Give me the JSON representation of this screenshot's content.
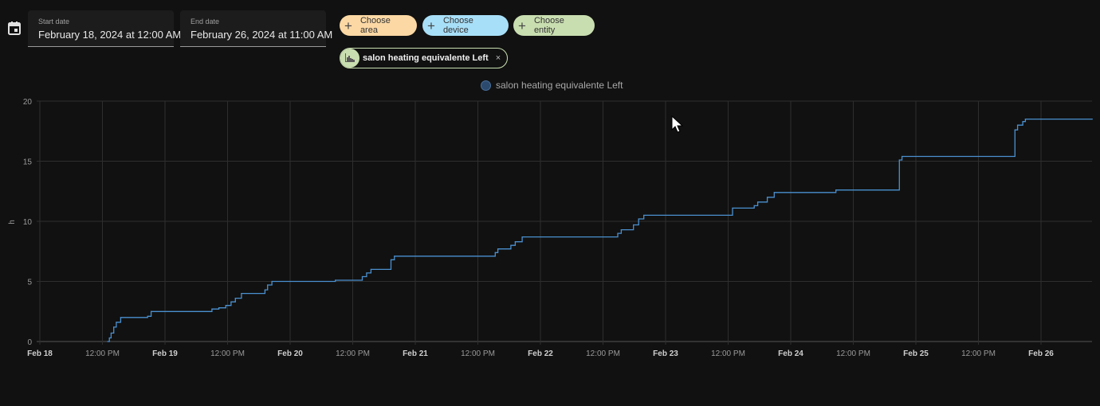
{
  "controls": {
    "calendar_icon": "calendar-icon",
    "start_date": {
      "label": "Start date",
      "value": "February 18, 2024 at 12:00 AM"
    },
    "end_date": {
      "label": "End date",
      "value": "February 26, 2024 at 11:00 AM"
    },
    "chips": [
      {
        "label": "Choose area",
        "color": "#fcd8a4"
      },
      {
        "label": "Choose device",
        "color": "#a8dff8"
      },
      {
        "label": "Choose entity",
        "color": "#c9deb0"
      }
    ],
    "selected_entity": {
      "label": "salon heating equivalente Left",
      "remove": "×"
    }
  },
  "chart_data": {
    "type": "line",
    "step": true,
    "legend": "top-center",
    "grid": true,
    "ylabel": "h",
    "ylim": [
      0,
      20
    ],
    "yticks": [
      "0",
      "5",
      "10",
      "15",
      "20"
    ],
    "xlim": [
      "2024-02-18 00:00",
      "2024-02-26 09:50"
    ],
    "xticks": [
      {
        "t": "2024-02-18 00:00",
        "label": "Feb 18",
        "bold": true
      },
      {
        "t": "2024-02-18 12:00",
        "label": "12:00 PM"
      },
      {
        "t": "2024-02-19 00:00",
        "label": "Feb 19",
        "bold": true
      },
      {
        "t": "2024-02-19 12:00",
        "label": "12:00 PM"
      },
      {
        "t": "2024-02-20 00:00",
        "label": "Feb 20",
        "bold": true
      },
      {
        "t": "2024-02-20 12:00",
        "label": "12:00 PM"
      },
      {
        "t": "2024-02-21 00:00",
        "label": "Feb 21",
        "bold": true
      },
      {
        "t": "2024-02-21 12:00",
        "label": "12:00 PM"
      },
      {
        "t": "2024-02-22 00:00",
        "label": "Feb 22",
        "bold": true
      },
      {
        "t": "2024-02-22 12:00",
        "label": "12:00 PM"
      },
      {
        "t": "2024-02-23 00:00",
        "label": "Feb 23",
        "bold": true
      },
      {
        "t": "2024-02-23 12:00",
        "label": "12:00 PM"
      },
      {
        "t": "2024-02-24 00:00",
        "label": "Feb 24",
        "bold": true
      },
      {
        "t": "2024-02-24 12:00",
        "label": "12:00 PM"
      },
      {
        "t": "2024-02-25 00:00",
        "label": "Feb 25",
        "bold": true
      },
      {
        "t": "2024-02-25 12:00",
        "label": "12:00 PM"
      },
      {
        "t": "2024-02-26 00:00",
        "label": "Feb 26",
        "bold": true
      }
    ],
    "series": [
      {
        "name": "salon heating equivalente Left",
        "color": "#4a90d0",
        "points": [
          [
            "2024-02-18 13:00",
            0
          ],
          [
            "2024-02-18 13:20",
            0.3
          ],
          [
            "2024-02-18 13:40",
            0.7
          ],
          [
            "2024-02-18 14:10",
            1.2
          ],
          [
            "2024-02-18 14:40",
            1.6
          ],
          [
            "2024-02-18 15:30",
            2.0
          ],
          [
            "2024-02-18 20:40",
            2.1
          ],
          [
            "2024-02-18 21:20",
            2.5
          ],
          [
            "2024-02-19 09:00",
            2.7
          ],
          [
            "2024-02-19 10:20",
            2.8
          ],
          [
            "2024-02-19 11:40",
            3.0
          ],
          [
            "2024-02-19 12:40",
            3.3
          ],
          [
            "2024-02-19 13:30",
            3.6
          ],
          [
            "2024-02-19 14:40",
            4.0
          ],
          [
            "2024-02-19 19:10",
            4.3
          ],
          [
            "2024-02-19 19:40",
            4.7
          ],
          [
            "2024-02-19 20:30",
            5.0
          ],
          [
            "2024-02-20 08:40",
            5.1
          ],
          [
            "2024-02-20 13:50",
            5.4
          ],
          [
            "2024-02-20 14:40",
            5.7
          ],
          [
            "2024-02-20 15:30",
            6.0
          ],
          [
            "2024-02-20 19:20",
            6.8
          ],
          [
            "2024-02-20 20:00",
            7.1
          ],
          [
            "2024-02-21 15:20",
            7.4
          ],
          [
            "2024-02-21 15:50",
            7.7
          ],
          [
            "2024-02-21 18:20",
            8.0
          ],
          [
            "2024-02-21 19:10",
            8.3
          ],
          [
            "2024-02-21 20:30",
            8.7
          ],
          [
            "2024-02-22 14:50",
            9.0
          ],
          [
            "2024-02-22 15:30",
            9.3
          ],
          [
            "2024-02-22 17:50",
            9.7
          ],
          [
            "2024-02-22 18:50",
            10.2
          ],
          [
            "2024-02-22 19:50",
            10.5
          ],
          [
            "2024-02-23 12:50",
            11.1
          ],
          [
            "2024-02-23 17:00",
            11.3
          ],
          [
            "2024-02-23 17:40",
            11.6
          ],
          [
            "2024-02-23 19:30",
            12.0
          ],
          [
            "2024-02-23 20:50",
            12.4
          ],
          [
            "2024-02-24 08:40",
            12.6
          ],
          [
            "2024-02-24 20:50",
            15.1
          ],
          [
            "2024-02-24 21:20",
            15.4
          ],
          [
            "2024-02-25 19:00",
            17.6
          ],
          [
            "2024-02-25 19:30",
            18.0
          ],
          [
            "2024-02-25 20:30",
            18.3
          ],
          [
            "2024-02-25 21:00",
            18.5
          ],
          [
            "2024-02-26 09:50",
            18.5
          ]
        ]
      }
    ]
  }
}
